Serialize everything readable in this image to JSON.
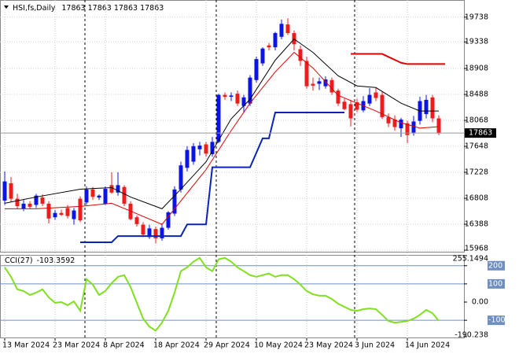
{
  "chart_data": [
    {
      "type": "candlestick",
      "title": "HSI,fs,Daily",
      "ohlc_label": "17863 17863 17863 17863",
      "categories": [
        "13 Mar 2024",
        null,
        null,
        null,
        null,
        null,
        null,
        null,
        "23 Mar 2024",
        null,
        null,
        null,
        null,
        null,
        null,
        null,
        "8 Apr 2024",
        null,
        null,
        null,
        null,
        null,
        null,
        null,
        "18 Apr 2024",
        null,
        null,
        null,
        null,
        null,
        null,
        null,
        "29 Apr 2024",
        null,
        null,
        null,
        null,
        null,
        null,
        null,
        "10 May 2024",
        null,
        null,
        null,
        null,
        null,
        null,
        null,
        "23 May 2024",
        null,
        null,
        null,
        null,
        null,
        null,
        null,
        "3 Jun 2024",
        null,
        null,
        null,
        null,
        null,
        null,
        null,
        "14 Jun 2024",
        null,
        null,
        null,
        null,
        null
      ],
      "open": [
        16770,
        17050,
        16800,
        16640,
        16720,
        16700,
        16820,
        16720,
        16500,
        16570,
        16650,
        16470,
        16800,
        16740,
        16950,
        16820,
        16720,
        17020,
        16900,
        16990,
        16720,
        16500,
        16380,
        16180,
        16310,
        16160,
        16330,
        16560,
        16950,
        17300,
        17400,
        17600,
        17680,
        17520,
        17720,
        18480,
        18450,
        18500,
        18300,
        18340,
        18720,
        18990,
        19280,
        19250,
        19420,
        19620,
        19480,
        19220,
        19030,
        18660,
        18660,
        18620,
        18720,
        18550,
        18370,
        18330,
        18360,
        18230,
        18340,
        18520,
        18480,
        18120,
        18080,
        17940,
        18020,
        17870,
        18060,
        18170,
        18440,
        18100
      ],
      "high": [
        17240,
        17150,
        16880,
        16780,
        16760,
        16880,
        16870,
        16760,
        16620,
        16620,
        16700,
        16650,
        16840,
        17000,
        16990,
        16870,
        17000,
        17230,
        17230,
        17020,
        16760,
        16530,
        16420,
        16380,
        16350,
        16400,
        16600,
        17000,
        17400,
        17650,
        17700,
        17720,
        17720,
        17800,
        18500,
        18520,
        18520,
        18550,
        18480,
        18800,
        19100,
        19250,
        19320,
        19500,
        19700,
        19720,
        19520,
        19280,
        19100,
        18760,
        18760,
        18780,
        18760,
        18580,
        18420,
        18400,
        18420,
        18460,
        18590,
        18590,
        18540,
        18180,
        18150,
        18110,
        18060,
        18140,
        18450,
        18480,
        18480,
        18150
      ],
      "low": [
        16700,
        16750,
        16640,
        16600,
        16640,
        16650,
        16680,
        16400,
        16460,
        16520,
        16480,
        16380,
        16420,
        16700,
        16780,
        16780,
        16700,
        16880,
        16850,
        16680,
        16450,
        16350,
        16180,
        16150,
        16080,
        16120,
        16300,
        16520,
        16900,
        17240,
        17350,
        17500,
        17480,
        17480,
        17700,
        18400,
        18380,
        18300,
        18200,
        18300,
        18680,
        18950,
        19200,
        19200,
        19380,
        19450,
        19200,
        18950,
        18580,
        18550,
        18560,
        18580,
        18480,
        18300,
        18230,
        17970,
        18200,
        18200,
        18300,
        18380,
        18090,
        17960,
        17900,
        17800,
        17700,
        17820,
        18000,
        18100,
        18040,
        17830
      ],
      "close": [
        17080,
        16800,
        16680,
        16720,
        16670,
        16850,
        16720,
        16480,
        16570,
        16540,
        16520,
        16610,
        16450,
        16950,
        16830,
        16850,
        16960,
        16900,
        17020,
        16720,
        16470,
        16390,
        16220,
        16320,
        16160,
        16330,
        16580,
        16950,
        17340,
        17590,
        17650,
        17660,
        17530,
        17720,
        18480,
        18450,
        18470,
        18340,
        18440,
        18760,
        19060,
        19230,
        19250,
        19480,
        19630,
        19480,
        19300,
        19030,
        18620,
        18630,
        18700,
        18730,
        18520,
        18340,
        18250,
        18100,
        18240,
        18380,
        18480,
        18430,
        18120,
        18020,
        17960,
        18080,
        17830,
        18050,
        18380,
        18400,
        18100,
        17863
      ],
      "up_color": "#0a14e6",
      "down_color": "#ee1c1c",
      "series": [
        {
          "color": "#000000",
          "width": 1,
          "x": [
            0,
            5,
            12,
            17,
            20,
            25,
            28,
            32,
            36,
            39,
            43,
            46,
            49,
            53,
            56,
            59,
            63,
            66,
            69
          ],
          "values": [
            16727,
            16828,
            16955,
            16980,
            16828,
            16638,
            16955,
            17397,
            18093,
            18410,
            19042,
            19384,
            19168,
            18789,
            18625,
            18599,
            18346,
            18220,
            18220
          ]
        },
        {
          "color": "#e00000",
          "width": 1,
          "x": [
            0,
            5,
            12,
            17,
            20,
            25,
            28,
            32,
            36,
            39,
            43,
            46,
            49,
            53,
            56,
            59,
            63,
            66,
            69
          ],
          "values": [
            16638,
            16638,
            16676,
            16727,
            16600,
            16385,
            16765,
            17271,
            17903,
            18346,
            18852,
            19168,
            18915,
            18473,
            18346,
            18220,
            18030,
            17942,
            17967
          ]
        },
        {
          "color": "#0a24b8",
          "width": 2,
          "x": [
            12,
            17,
            18,
            28,
            29,
            32,
            33,
            39,
            41,
            42,
            43,
            54
          ],
          "values": [
            16095,
            16095,
            16196,
            16196,
            16385,
            16385,
            17309,
            17309,
            17777,
            17777,
            18195,
            18195
          ]
        },
        {
          "color": "#e00000",
          "width": 2,
          "x": [
            55,
            60,
            63,
            64,
            70
          ],
          "values": [
            19143,
            19143,
            19000,
            18979,
            18979
          ]
        }
      ],
      "last_price": 17863,
      "ylim": [
        15968,
        19990
      ],
      "yticks": [
        19738,
        19338,
        18908,
        18488,
        18068,
        17648,
        17228,
        16808,
        16388,
        15968
      ]
    },
    {
      "type": "line",
      "title": "CCI(27)",
      "color": "#80e020",
      "values": [
        191,
        139,
        70,
        61,
        39,
        52,
        70,
        26,
        -4,
        0,
        -17,
        4,
        -48,
        126,
        96,
        39,
        61,
        104,
        139,
        148,
        83,
        -4,
        -91,
        -135,
        -157,
        -113,
        -48,
        52,
        170,
        191,
        222,
        243,
        191,
        170,
        235,
        243,
        222,
        191,
        170,
        148,
        139,
        148,
        157,
        139,
        148,
        148,
        126,
        96,
        61,
        43,
        35,
        35,
        17,
        -9,
        -26,
        -43,
        -48,
        -39,
        -35,
        -39,
        -70,
        -104,
        -113,
        -109,
        -104,
        -91,
        -70,
        -43,
        -61,
        -103.3592
      ],
      "levels": [
        200,
        100,
        -100
      ],
      "level_color": "#6f8fc0",
      "ylim": [
        -190.238,
        255.1494
      ],
      "yticks": [
        255.1494,
        200,
        100,
        {
          "value": 0,
          "label": "0.00"
        },
        -100,
        -190.238
      ]
    }
  ]
}
